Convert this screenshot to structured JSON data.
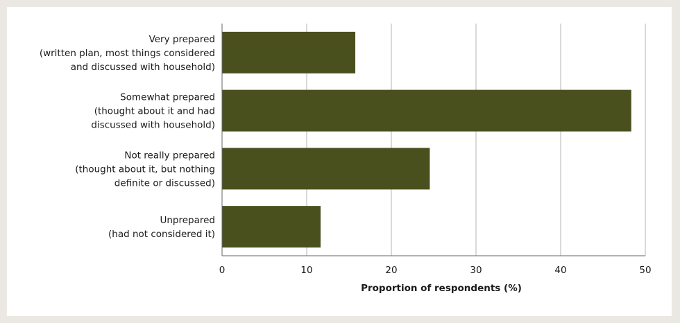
{
  "chart_data": {
    "type": "bar",
    "orientation": "horizontal",
    "categories": [
      [
        "Very prepared",
        "(written plan, most things considered",
        "and discussed with household)"
      ],
      [
        "Somewhat prepared",
        "(thought about it and had",
        "discussed with household)"
      ],
      [
        "Not really prepared",
        "(thought about it, but nothing",
        "definite or discussed)"
      ],
      [
        "Unprepared",
        "(had not considered it)"
      ]
    ],
    "values": [
      15.7,
      48.3,
      24.5,
      11.6
    ],
    "xlabel": "Proportion of respondents (%)",
    "ylabel": "",
    "xlim": [
      0,
      50
    ],
    "xticks": [
      0,
      10,
      20,
      30,
      40,
      50
    ],
    "grid": true,
    "colors": {
      "bar": "#4a4f1e",
      "grid": "#b3b3b3",
      "axis": "#666666"
    }
  }
}
